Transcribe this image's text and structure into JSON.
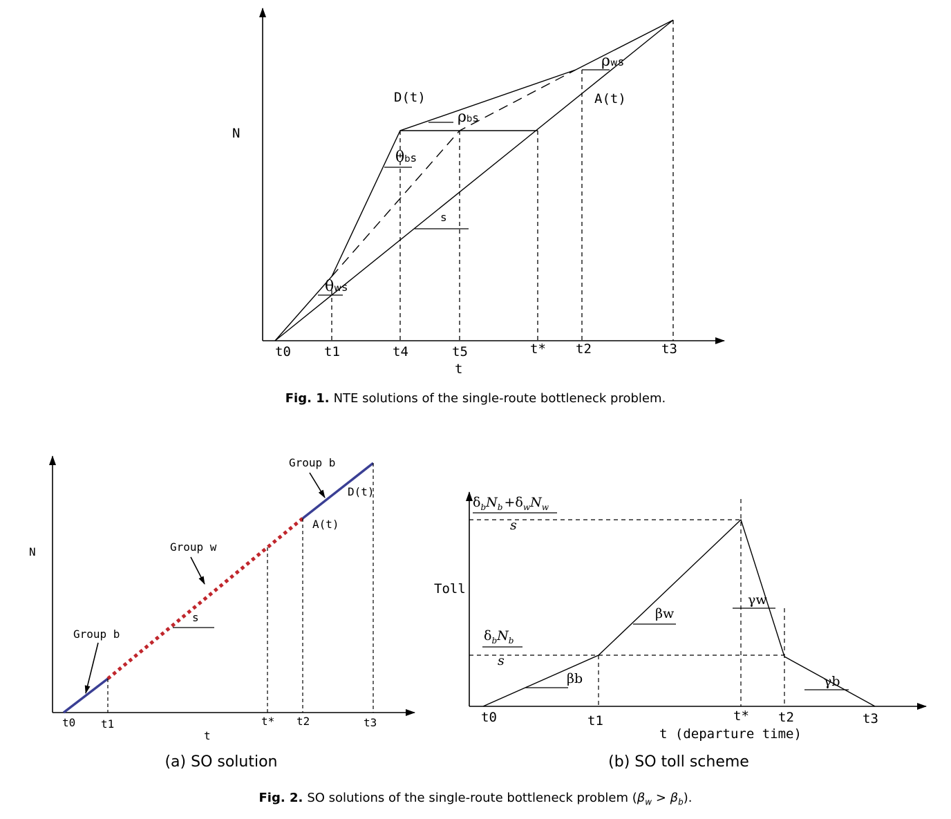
{
  "fig1": {
    "caption_label": "Fig. 1.",
    "caption_text": "NTE solutions of the single-route bottleneck problem.",
    "y_label": "N",
    "x_label": "t",
    "x_ticks": [
      "t0",
      "t1",
      "t4",
      "t5",
      "t*",
      "t2",
      "t3"
    ],
    "curve_labels": {
      "D": "D(t)",
      "A": "A(t)"
    },
    "slope_labels": {
      "theta_w": {
        "greek": "θ",
        "sub": "w",
        "tail": "s"
      },
      "theta_b": {
        "greek": "θ",
        "sub": "b",
        "tail": "s"
      },
      "rho_b": {
        "greek": "ρ",
        "sub": "b",
        "tail": "s"
      },
      "rho_w": {
        "greek": "ρ",
        "sub": "w",
        "tail": "s"
      },
      "s": "s"
    }
  },
  "fig2a": {
    "subcaption": "(a)  SO solution",
    "y_label": "N",
    "x_label": "t",
    "x_ticks": [
      "t0",
      "t1",
      "t*",
      "t2",
      "t3"
    ],
    "group_labels": [
      "Group b",
      "Group w",
      "Group b"
    ],
    "curve_labels": {
      "D": "D(t)",
      "A": "A(t)"
    },
    "slope_label": "s",
    "colors": {
      "group_b": "#3a3f94",
      "group_w": "#c0262c"
    }
  },
  "fig2b": {
    "subcaption": "(b)  SO toll scheme",
    "y_label": "Toll",
    "x_label": "t (departure time)",
    "x_ticks": [
      "t0",
      "t1",
      "t*",
      "t2",
      "t3"
    ],
    "slope_labels": [
      "βb",
      "βw",
      "γw",
      "γb"
    ],
    "top_fraction": {
      "d1": "δ",
      "s1": "b",
      "n1": "N",
      "ns1": "b",
      "plus": "+",
      "d2": "δ",
      "s2": "w",
      "n2": "N",
      "ns2": "w",
      "den": "s"
    },
    "mid_fraction": {
      "d1": "δ",
      "s1": "b",
      "n1": "N",
      "ns1": "b",
      "den": "s"
    }
  },
  "fig2": {
    "caption_label": "Fig. 2.",
    "caption_text": "SO solutions of the single-route bottleneck problem (",
    "caption_b1": "β",
    "caption_s1": "w",
    "caption_gt": " > ",
    "caption_b2": "β",
    "caption_s2": "b",
    "caption_end": ")."
  }
}
